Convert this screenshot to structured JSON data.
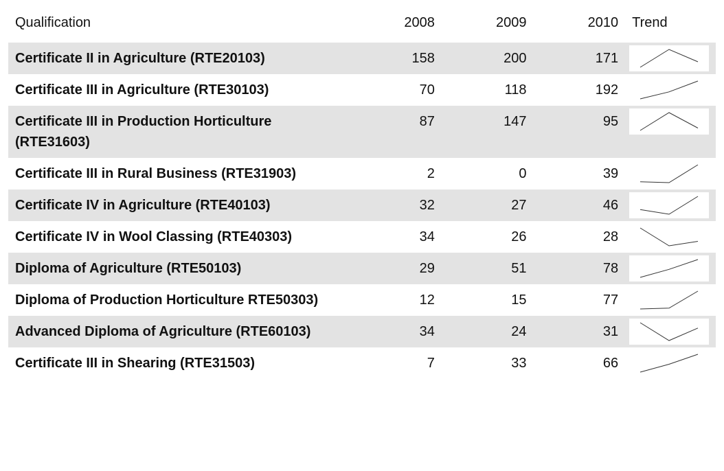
{
  "header": {
    "qualification": "Qualification",
    "years": [
      "2008",
      "2009",
      "2010"
    ],
    "trend": "Trend"
  },
  "table": {
    "rows": [
      {
        "name": "Certificate II in Agriculture (RTE20103)",
        "values": [
          158,
          200,
          171
        ]
      },
      {
        "name": "Certificate III in Agriculture (RTE30103)",
        "values": [
          70,
          118,
          192
        ]
      },
      {
        "name": "Certificate III in Production Horticulture (RTE31603)",
        "values": [
          87,
          147,
          95
        ]
      },
      {
        "name": "Certificate III in Rural Business (RTE31903)",
        "values": [
          2,
          0,
          39
        ]
      },
      {
        "name": "Certificate IV in Agriculture (RTE40103)",
        "values": [
          32,
          27,
          46
        ]
      },
      {
        "name": "Certificate IV in Wool Classing (RTE40303)",
        "values": [
          34,
          26,
          28
        ]
      },
      {
        "name": "Diploma of Agriculture (RTE50103)",
        "values": [
          29,
          51,
          78
        ]
      },
      {
        "name": "Diploma of Production Horticulture RTE50303)",
        "values": [
          12,
          15,
          77
        ]
      },
      {
        "name": "Advanced Diploma of Agriculture (RTE60103)",
        "values": [
          34,
          24,
          31
        ]
      },
      {
        "name": "Certificate III in Shearing (RTE31503)",
        "values": [
          7,
          33,
          66
        ]
      }
    ]
  }
}
